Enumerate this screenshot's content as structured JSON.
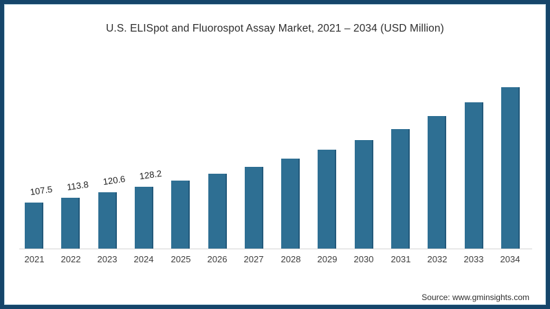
{
  "colors": {
    "border": "#15456a",
    "inner_line": "#bcd7e3",
    "background": "#ffffff",
    "bar": "#2e6f93",
    "bar_edge": "#235a7c",
    "axis_line": "#d6d6d6"
  },
  "source_note": "Source: www.gminsights.com",
  "chart_data": {
    "type": "bar",
    "title": "U.S. ELISpot and Fluorospot Assay Market, 2021 – 2034 (USD Million)",
    "categories": [
      "2021",
      "2022",
      "2023",
      "2024",
      "2025",
      "2026",
      "2027",
      "2028",
      "2029",
      "2030",
      "2031",
      "2032",
      "2033",
      "2034"
    ],
    "values": [
      107.5,
      113.8,
      120.6,
      128.2,
      136.3,
      145.3,
      154.8,
      165.4,
      177.1,
      190.0,
      204.4,
      220.9,
      238.9,
      259.0
    ],
    "data_labels": [
      "107.5",
      "113.8",
      "120.6",
      "128.2",
      null,
      null,
      null,
      null,
      null,
      null,
      null,
      null,
      null,
      null
    ],
    "xlabel": "",
    "ylabel": "",
    "ylim": [
      47,
      260
    ],
    "grid": false,
    "legend": false,
    "y_axis_shown": false
  }
}
